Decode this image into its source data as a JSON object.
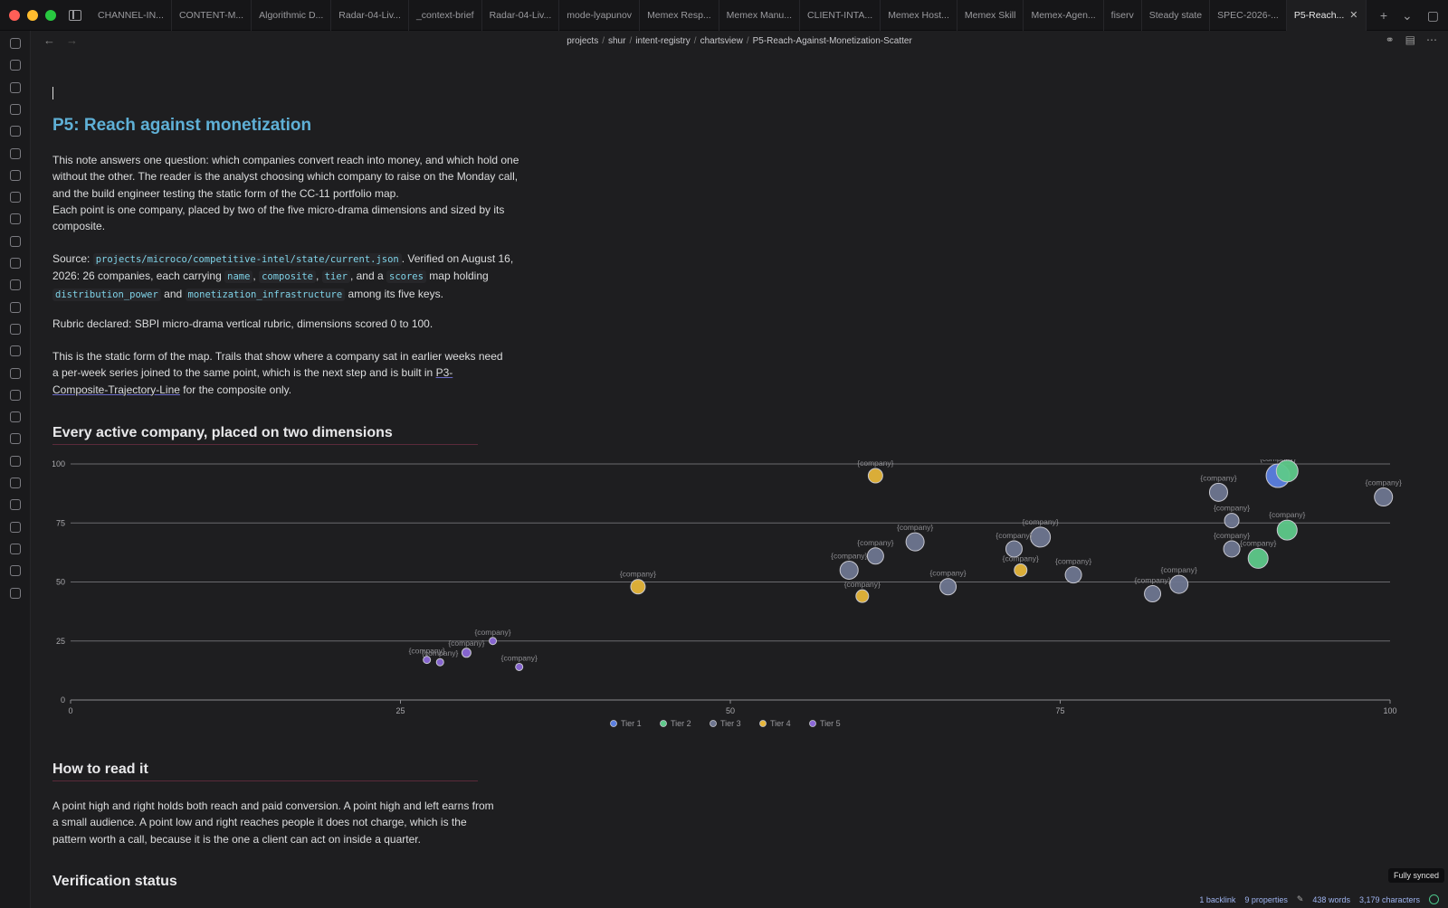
{
  "tabs": [
    "CHANNEL-IN...",
    "CONTENT-M...",
    "Algorithmic D...",
    "Radar-04-Liv...",
    "_context-brief",
    "Radar-04-Liv...",
    "mode-lyapunov",
    "Memex Resp...",
    "Memex Manu...",
    "CLIENT-INTA...",
    "Memex Host...",
    "Memex Skill",
    "Memex-Agen...",
    "fiserv",
    "Steady state",
    "SPEC-2026-..."
  ],
  "active_tab": "P5-Reach...",
  "breadcrumb": [
    "projects",
    "shur",
    "intent-registry",
    "chartsview",
    "P5-Reach-Against-Monetization-Scatter"
  ],
  "note": {
    "title": "P5: Reach against monetization",
    "intro": "This note answers one question: which companies convert reach into money, and which hold one without the other. The reader is the analyst choosing which company to raise on the Monday call, and the build engineer testing the static form of the CC-11 portfolio map.",
    "intro2": "Each point is one company, placed by two of the five micro-drama dimensions and sized by its composite.",
    "source_label": "Source:",
    "source_path": "projects/microco/competitive-intel/state/current.json",
    "source_mid": ". Verified on August 16, 2026: 26 companies, each carrying",
    "key_name": "name",
    "key_composite": "composite",
    "key_tier": "tier",
    "source_and_a": ", and a",
    "key_scores": "scores",
    "source_map": "map holding",
    "key_dist": "distribution_power",
    "source_and": "and",
    "key_monet": "monetization_infrastructure",
    "source_end": "among its five keys.",
    "rubric": "Rubric declared: SBPI micro-drama vertical rubric, dimensions scored 0 to 100.",
    "static_text": "This is the static form of the map. Trails that show where a company sat in earlier weeks need a per-week series joined to the same point, which is the next step and is built in",
    "static_link": "P3-Composite-Trajectory-Line",
    "static_end": "for the composite only.",
    "section_chart": "Every active company, placed on two dimensions",
    "section_read": "How to read it",
    "read_text": "A point high and right holds both reach and paid conversion. A point high and left earns from a small audience. A point low and right reaches people it does not charge, which is the pattern worth a call, because it is the one a client can act on inside a quarter.",
    "section_verify": "Verification status"
  },
  "chart_data": {
    "type": "scatter",
    "xlim": [
      0,
      100
    ],
    "ylim": [
      0,
      100
    ],
    "xticks": [
      0,
      25,
      50,
      75,
      100
    ],
    "yticks": [
      0,
      25,
      50,
      75,
      100
    ],
    "grid": true,
    "legend_placement": "bottom-center",
    "point_label": "{company}",
    "tiers": [
      {
        "name": "Tier 1",
        "color": "#5b7fe0"
      },
      {
        "name": "Tier 2",
        "color": "#5ec98a"
      },
      {
        "name": "Tier 3",
        "color": "#6e7690"
      },
      {
        "name": "Tier 4",
        "color": "#e5b53a"
      },
      {
        "name": "Tier 5",
        "color": "#8b68d8"
      }
    ],
    "points": [
      {
        "x": 91.5,
        "y": 95,
        "tier": 1,
        "size": 13
      },
      {
        "x": 92.2,
        "y": 97,
        "tier": 2,
        "size": 12
      },
      {
        "x": 87,
        "y": 88,
        "tier": 3,
        "size": 10
      },
      {
        "x": 99.5,
        "y": 86,
        "tier": 3,
        "size": 10
      },
      {
        "x": 88,
        "y": 76,
        "tier": 3,
        "size": 8
      },
      {
        "x": 92.2,
        "y": 72,
        "tier": 2,
        "size": 11
      },
      {
        "x": 88,
        "y": 64,
        "tier": 3,
        "size": 9
      },
      {
        "x": 90,
        "y": 60,
        "tier": 2,
        "size": 11
      },
      {
        "x": 84,
        "y": 49,
        "tier": 3,
        "size": 10
      },
      {
        "x": 82,
        "y": 45,
        "tier": 3,
        "size": 9
      },
      {
        "x": 76,
        "y": 53,
        "tier": 3,
        "size": 9
      },
      {
        "x": 73.5,
        "y": 69,
        "tier": 3,
        "size": 11
      },
      {
        "x": 71.5,
        "y": 64,
        "tier": 3,
        "size": 9
      },
      {
        "x": 72,
        "y": 55,
        "tier": 4,
        "size": 7
      },
      {
        "x": 66.5,
        "y": 48,
        "tier": 3,
        "size": 9
      },
      {
        "x": 64,
        "y": 67,
        "tier": 3,
        "size": 10
      },
      {
        "x": 61,
        "y": 95,
        "tier": 4,
        "size": 8
      },
      {
        "x": 61,
        "y": 61,
        "tier": 3,
        "size": 9
      },
      {
        "x": 59,
        "y": 55,
        "tier": 3,
        "size": 10
      },
      {
        "x": 60,
        "y": 44,
        "tier": 4,
        "size": 7
      },
      {
        "x": 43,
        "y": 48,
        "tier": 4,
        "size": 8
      },
      {
        "x": 32,
        "y": 25,
        "tier": 5,
        "size": 4
      },
      {
        "x": 30,
        "y": 20,
        "tier": 5,
        "size": 5
      },
      {
        "x": 34,
        "y": 14,
        "tier": 5,
        "size": 4
      },
      {
        "x": 28,
        "y": 16,
        "tier": 5,
        "size": 4
      },
      {
        "x": 27,
        "y": 17,
        "tier": 5,
        "size": 4
      }
    ]
  },
  "status": {
    "synced": "Fully synced",
    "backlinks": "1 backlink",
    "properties": "9 properties",
    "words": "438 words",
    "chars": "3,179 characters"
  }
}
